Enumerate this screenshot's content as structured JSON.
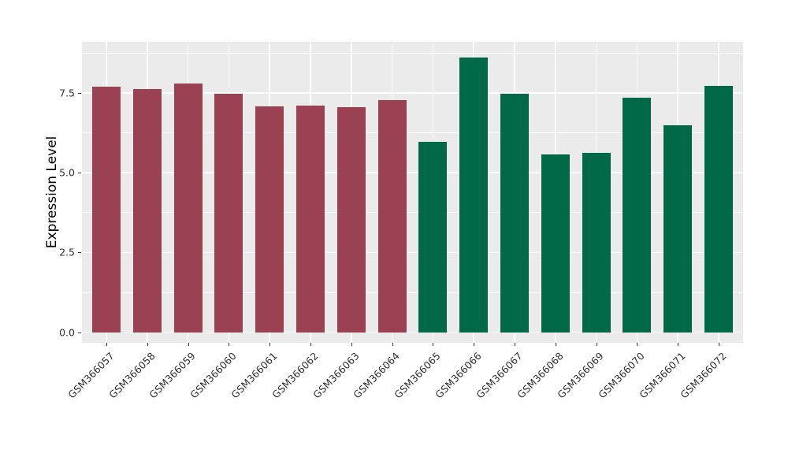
{
  "figure": {
    "background": "#ffffff"
  },
  "chart_data": {
    "type": "bar",
    "title": "",
    "xlabel": "",
    "ylabel": "Expression Level",
    "categories": [
      "GSM366057",
      "GSM366058",
      "GSM366059",
      "GSM366060",
      "GSM366061",
      "GSM366062",
      "GSM366063",
      "GSM366064",
      "GSM366065",
      "GSM366066",
      "GSM366067",
      "GSM366068",
      "GSM366069",
      "GSM366070",
      "GSM366071",
      "GSM366072"
    ],
    "values": [
      7.7,
      7.63,
      7.78,
      7.48,
      7.08,
      7.1,
      7.06,
      7.27,
      5.97,
      8.6,
      7.46,
      5.57,
      5.63,
      7.35,
      6.48,
      7.71
    ],
    "bar_colors": [
      "#9B4154",
      "#9B4154",
      "#9B4154",
      "#9B4154",
      "#9B4154",
      "#9B4154",
      "#9B4154",
      "#9B4154",
      "#026948",
      "#026948",
      "#026948",
      "#026948",
      "#026948",
      "#026948",
      "#026948",
      "#026948"
    ],
    "group_colors": {
      "group_1_color": "#9B4154",
      "group_2_color": "#026948"
    },
    "y_tick_labels": [
      "0.0",
      "2.5",
      "5.0",
      "7.5"
    ],
    "y_tick_values": [
      0,
      2.5,
      5,
      7.5
    ],
    "y_minor_values": [
      1.25,
      3.75,
      6.25,
      8.75
    ],
    "ylim": [
      -0.33,
      9.1
    ],
    "grid": true,
    "legend_position": "none",
    "style": {
      "panel_bg": "#EBEBEB",
      "grid_color": "#FFFFFF",
      "tick_mark_color": "#333333",
      "tick_label_color": "#303030",
      "axis_title_color": "#000000"
    }
  }
}
